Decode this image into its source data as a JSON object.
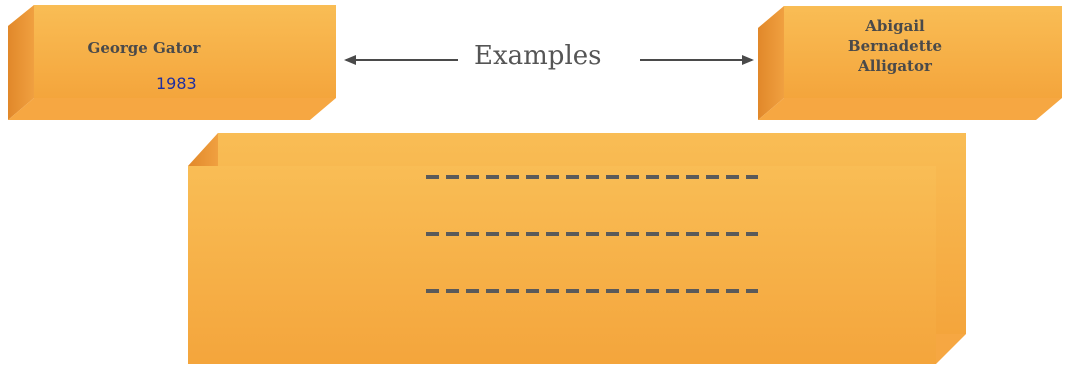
{
  "left_box": {
    "name": "George Gator",
    "year": "1983"
  },
  "center_label": "Examples",
  "right_box": {
    "line1": "Abigail",
    "line2": "Bernadette",
    "line3": "Alligator"
  },
  "bottom_box": {
    "blank_lines": 3
  },
  "colors": {
    "box_face": "#f7b14a",
    "box_top": "#fcd27e",
    "box_side": "#e9952d",
    "dash": "#5a5a5a",
    "year_text": "#1f2fa0"
  }
}
